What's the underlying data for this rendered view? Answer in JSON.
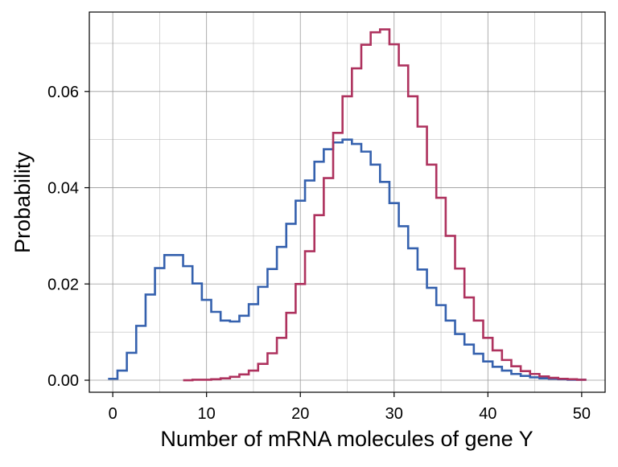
{
  "chart_data": {
    "type": "line",
    "step": true,
    "title": "",
    "xlabel": "Number of mRNA molecules of gene Y",
    "ylabel": "Probability",
    "xlim": [
      -2.5,
      52.5
    ],
    "ylim": [
      -0.0025,
      0.0765
    ],
    "x_ticks": [
      0,
      10,
      20,
      30,
      40,
      50
    ],
    "x_tick_labels": [
      "0",
      "10",
      "20",
      "30",
      "40",
      "50"
    ],
    "y_ticks": [
      0.0,
      0.02,
      0.04,
      0.06
    ],
    "y_tick_labels": [
      "0.00",
      "0.02",
      "0.04",
      "0.06"
    ],
    "x_minor_ticks": [
      5,
      15,
      25,
      35,
      45
    ],
    "y_minor_ticks": [
      0.01,
      0.03,
      0.05,
      0.07
    ],
    "grid": true,
    "legend": "none",
    "colors": {
      "blue": "#3561ae",
      "red": "#ae325e",
      "grid": "#bdbdbd"
    },
    "series": [
      {
        "color": "#3561ae",
        "x": [
          0,
          1,
          2,
          3,
          4,
          5,
          6,
          7,
          8,
          9,
          10,
          11,
          12,
          13,
          14,
          15,
          16,
          17,
          18,
          19,
          20,
          21,
          22,
          23,
          24,
          25,
          26,
          27,
          28,
          29,
          30,
          31,
          32,
          33,
          34,
          35,
          36,
          37,
          38,
          39,
          40,
          41,
          42,
          43,
          44,
          45,
          46,
          47,
          48,
          49,
          50
        ],
        "values": [
          0.0003,
          0.002,
          0.0057,
          0.0113,
          0.0178,
          0.0233,
          0.026,
          0.026,
          0.0237,
          0.0201,
          0.0167,
          0.0142,
          0.0124,
          0.0122,
          0.0134,
          0.0158,
          0.0194,
          0.0231,
          0.0277,
          0.0325,
          0.0373,
          0.0415,
          0.0454,
          0.048,
          0.0494,
          0.05,
          0.0491,
          0.0475,
          0.0448,
          0.0412,
          0.0368,
          0.032,
          0.0274,
          0.023,
          0.0192,
          0.0156,
          0.0124,
          0.0096,
          0.0074,
          0.0055,
          0.0039,
          0.0028,
          0.002,
          0.0013,
          0.0009,
          0.0006,
          0.0004,
          0.0003,
          0.0002,
          0.0001,
          0.0001
        ]
      },
      {
        "color": "#ae325e",
        "x": [
          8,
          9,
          10,
          11,
          12,
          13,
          14,
          15,
          16,
          17,
          18,
          19,
          20,
          21,
          22,
          23,
          24,
          25,
          26,
          27,
          28,
          29,
          30,
          31,
          32,
          33,
          34,
          35,
          36,
          37,
          38,
          39,
          40,
          41,
          42,
          43,
          44,
          45,
          46,
          47,
          48,
          49,
          50
        ],
        "values": [
          0.0,
          0.0001,
          0.0001,
          0.0002,
          0.0004,
          0.0007,
          0.0012,
          0.002,
          0.0034,
          0.0056,
          0.0088,
          0.014,
          0.02,
          0.0268,
          0.0343,
          0.042,
          0.0514,
          0.059,
          0.0648,
          0.0697,
          0.0723,
          0.0729,
          0.0698,
          0.0654,
          0.059,
          0.0527,
          0.0448,
          0.0379,
          0.03,
          0.0232,
          0.0172,
          0.0124,
          0.0088,
          0.0062,
          0.0042,
          0.0029,
          0.0019,
          0.0013,
          0.0008,
          0.0005,
          0.0003,
          0.0002,
          0.0001
        ]
      }
    ]
  }
}
